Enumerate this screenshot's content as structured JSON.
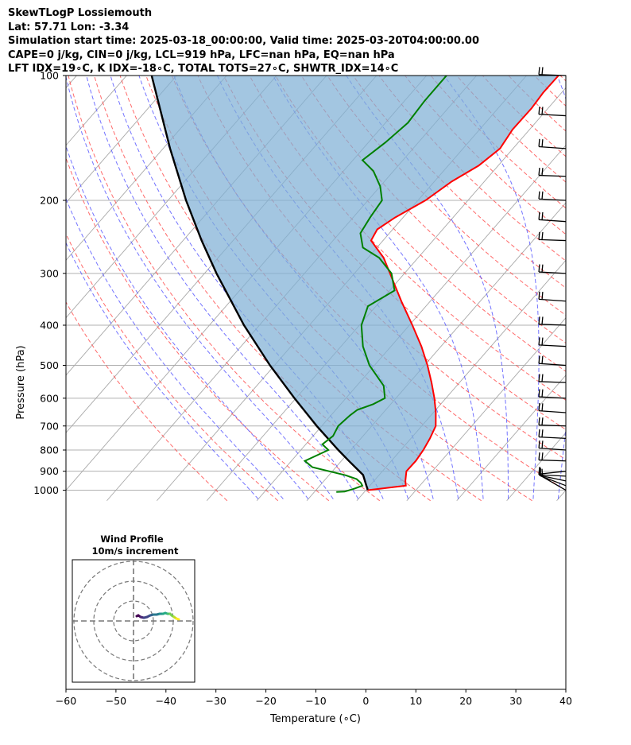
{
  "header": {
    "line1": "SkewTLogP Lossiemouth",
    "line2": "Lat: 57.71   Lon: -3.34",
    "line3": "Simulation start time: 2025-03-18_00:00:00, Valid time: 2025-03-20T04:00:00.00",
    "line4": "CAPE=0 j/kg, CIN=0 j/kg, LCL=919 hPa, LFC=nan hPa, EQ=nan hPa",
    "line5": "LFT IDX=19∘C, K IDX=-18∘C, TOTAL TOTS=27∘C, SHWTR_IDX=14∘C"
  },
  "chart_data": {
    "type": "line",
    "skew": "skew-T log-P",
    "xlabel": "Temperature (∘C)",
    "ylabel": "Pressure (hPa)",
    "xlim": [
      -60,
      40
    ],
    "ylim": [
      1050,
      100
    ],
    "y_scale": "log",
    "x_ticks": [
      -60,
      -50,
      -40,
      -30,
      -20,
      -10,
      0,
      10,
      20,
      30,
      40
    ],
    "x_tick_labels": [
      "−60",
      "−50",
      "−40",
      "−30",
      "−20",
      "−10",
      "0",
      "10",
      "20",
      "30",
      "40"
    ],
    "y_ticks": [
      100,
      200,
      300,
      400,
      500,
      600,
      700,
      800,
      900,
      1000
    ],
    "grid": true,
    "series": [
      {
        "role": "temperature",
        "color": "#ff0000",
        "points": [
          [
            1000,
            0.4
          ],
          [
            975,
            7.2
          ],
          [
            950,
            6.3
          ],
          [
            900,
            4.8
          ],
          [
            850,
            4.9
          ],
          [
            800,
            4.5
          ],
          [
            750,
            3.8
          ],
          [
            700,
            2.8
          ],
          [
            650,
            0.5
          ],
          [
            600,
            -2.3
          ],
          [
            550,
            -5.6
          ],
          [
            500,
            -9.4
          ],
          [
            450,
            -13.9
          ],
          [
            400,
            -19.4
          ],
          [
            350,
            -25.8
          ],
          [
            300,
            -32.9
          ],
          [
            275,
            -36.9
          ],
          [
            250,
            -42.4
          ],
          [
            235,
            -43.1
          ],
          [
            220,
            -41.6
          ],
          [
            200,
            -38.5
          ],
          [
            180,
            -36.5
          ],
          [
            165,
            -33.9
          ],
          [
            150,
            -32.6
          ],
          [
            135,
            -33.4
          ],
          [
            120,
            -33.3
          ],
          [
            110,
            -33.7
          ],
          [
            100,
            -33.6
          ]
        ]
      },
      {
        "role": "dewpoint",
        "color": "#008000",
        "points": [
          [
            1010,
            -5.6
          ],
          [
            1008,
            -4.0
          ],
          [
            990,
            -2.5
          ],
          [
            975,
            -1.5
          ],
          [
            960,
            -2.3
          ],
          [
            940,
            -3.8
          ],
          [
            920,
            -6.7
          ],
          [
            880,
            -14.7
          ],
          [
            850,
            -17.3
          ],
          [
            800,
            -14.5
          ],
          [
            775,
            -16.7
          ],
          [
            740,
            -16.0
          ],
          [
            700,
            -16.7
          ],
          [
            660,
            -16.2
          ],
          [
            640,
            -15.7
          ],
          [
            620,
            -13.5
          ],
          [
            600,
            -12.2
          ],
          [
            560,
            -14.6
          ],
          [
            500,
            -21.0
          ],
          [
            450,
            -25.6
          ],
          [
            400,
            -29.6
          ],
          [
            360,
            -31.6
          ],
          [
            330,
            -29.0
          ],
          [
            300,
            -32.6
          ],
          [
            275,
            -37.8
          ],
          [
            260,
            -42.8
          ],
          [
            240,
            -45.8
          ],
          [
            220,
            -46.6
          ],
          [
            200,
            -47.2
          ],
          [
            185,
            -50.0
          ],
          [
            170,
            -54.0
          ],
          [
            160,
            -58.1
          ],
          [
            145,
            -56.6
          ],
          [
            130,
            -55.5
          ],
          [
            115,
            -56.0
          ],
          [
            100,
            -56.0
          ]
        ]
      },
      {
        "role": "parcel",
        "color": "#000000",
        "points": [
          [
            1000,
            0.4
          ],
          [
            975,
            -0.7
          ],
          [
            950,
            -1.8
          ],
          [
            919,
            -3.2
          ],
          [
            850,
            -8.5
          ],
          [
            800,
            -12.5
          ],
          [
            700,
            -21.0
          ],
          [
            600,
            -30.3
          ],
          [
            500,
            -40.9
          ],
          [
            400,
            -53.1
          ],
          [
            300,
            -67.6
          ],
          [
            250,
            -76.3
          ],
          [
            200,
            -86.4
          ],
          [
            150,
            -98.6
          ],
          [
            100,
            -115.0
          ]
        ]
      }
    ],
    "shading": {
      "between": [
        "parcel",
        "temperature"
      ],
      "color": "#7fb0d6"
    },
    "wind_barbs_hPa": [
      1000,
      975,
      950,
      925,
      900,
      850,
      800,
      750,
      700,
      650,
      600,
      550,
      500,
      450,
      400,
      350,
      300,
      250,
      225,
      200,
      175,
      150,
      125,
      100
    ],
    "inset": {
      "title": "Wind Profile",
      "subtitle": "10m/s increment",
      "colormap": "viridis"
    }
  }
}
